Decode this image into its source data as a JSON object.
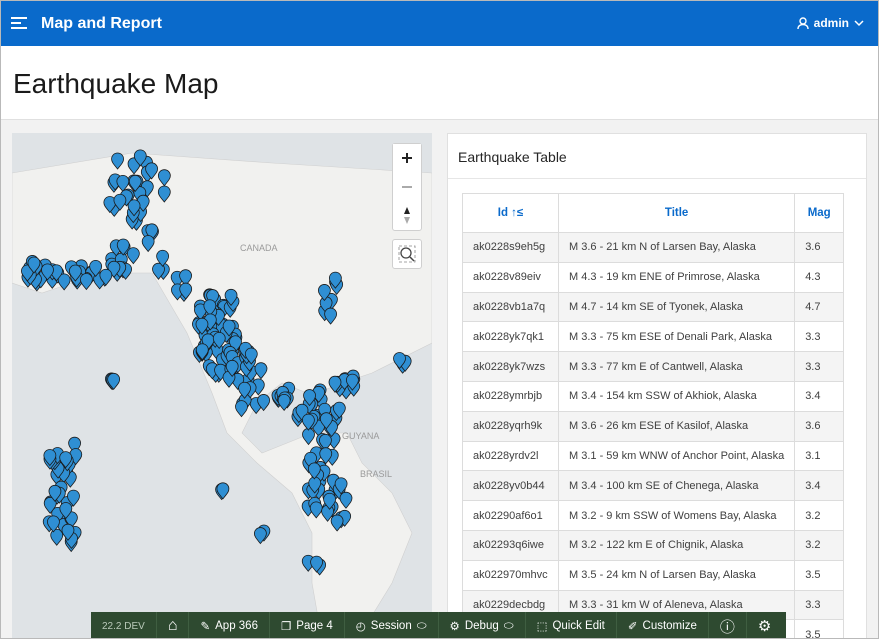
{
  "header": {
    "app_title": "Map and Report",
    "user": "admin"
  },
  "page": {
    "title": "Earthquake Map"
  },
  "map": {
    "labels": [
      "CANADA",
      "GUYANA",
      "BRASIL"
    ]
  },
  "table": {
    "title": "Earthquake Table",
    "columns": [
      "Id",
      "Title",
      "Mag"
    ],
    "rows": [
      {
        "id": "ak0228s9eh5g",
        "title": "M 3.6 - 21 km N of Larsen Bay, Alaska",
        "mag": 3.6
      },
      {
        "id": "ak0228v89eiv",
        "title": "M 4.3 - 19 km ENE of Primrose, Alaska",
        "mag": 4.3
      },
      {
        "id": "ak0228vb1a7q",
        "title": "M 4.7 - 14 km SE of Tyonek, Alaska",
        "mag": 4.7
      },
      {
        "id": "ak0228yk7qk1",
        "title": "M 3.3 - 75 km ESE of Denali Park, Alaska",
        "mag": 3.3
      },
      {
        "id": "ak0228yk7wzs",
        "title": "M 3.3 - 77 km E of Cantwell, Alaska",
        "mag": 3.3
      },
      {
        "id": "ak0228ymrbjb",
        "title": "M 3.4 - 154 km SSW of Akhiok, Alaska",
        "mag": 3.4
      },
      {
        "id": "ak0228yqrh9k",
        "title": "M 3.6 - 26 km ESE of Kasilof, Alaska",
        "mag": 3.6
      },
      {
        "id": "ak0228yrdv2l",
        "title": "M 3.1 - 59 km WNW of Anchor Point, Alaska",
        "mag": 3.1
      },
      {
        "id": "ak0228yv0b44",
        "title": "M 3.4 - 100 km SE of Chenega, Alaska",
        "mag": 3.4
      },
      {
        "id": "ak02290af6o1",
        "title": "M 3.2 - 9 km SSW of Womens Bay, Alaska",
        "mag": 3.2
      },
      {
        "id": "ak02293q6iwe",
        "title": "M 3.2 - 122 km E of Chignik, Alaska",
        "mag": 3.2
      },
      {
        "id": "ak022970mhvc",
        "title": "M 3.5 - 24 km N of Larsen Bay, Alaska",
        "mag": 3.5
      },
      {
        "id": "ak0229decbdg",
        "title": "M 3.3 - 31 km W of Aleneva, Alaska",
        "mag": 3.3
      },
      {
        "mag": 3.5
      }
    ]
  },
  "dev_toolbar": {
    "items": [
      "22.2 DEV",
      "App 366",
      "Page 4",
      "Session",
      "Debug",
      "Quick Edit",
      "Customize"
    ]
  }
}
